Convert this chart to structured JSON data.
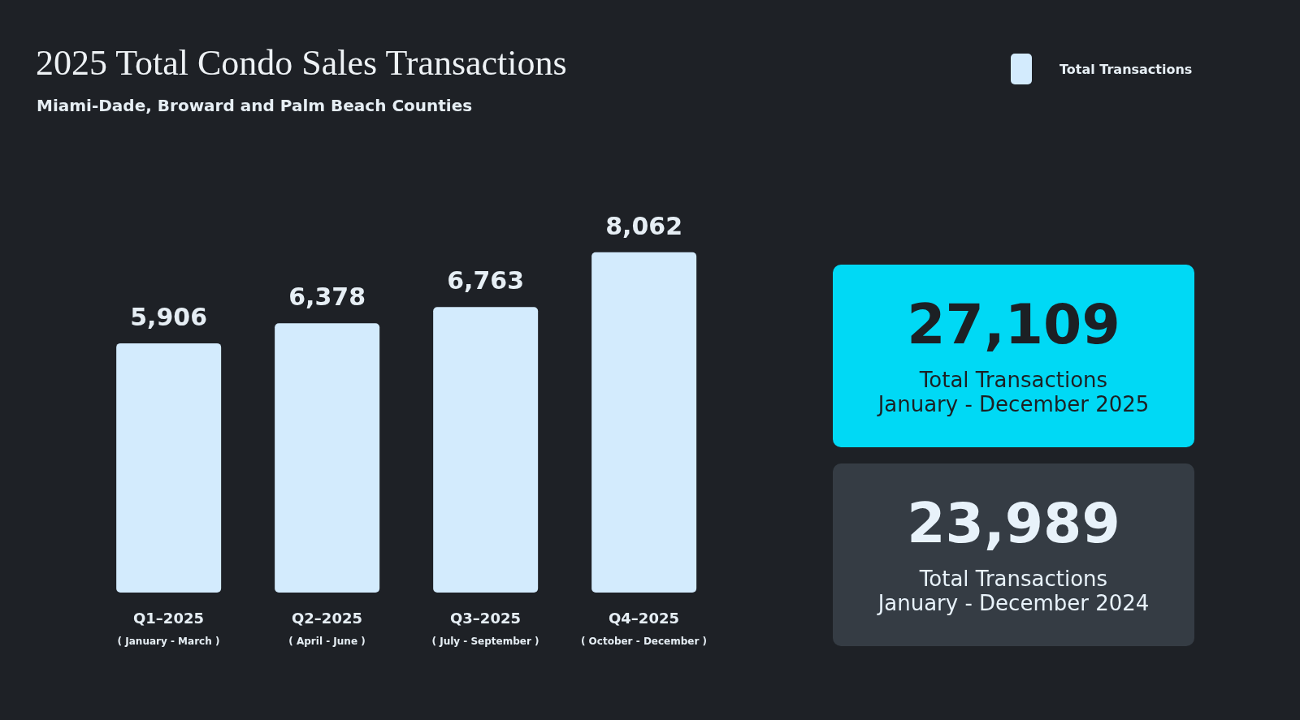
{
  "chart_data": [
    {
      "type": "bar",
      "title": "2025 Total Condo Sales Transactions",
      "subtitle": "Miami-Dade, Broward and Palm Beach Counties",
      "categories": [
        "Q1–2025\n( January - March )",
        "Q2–2025\n( April - June )",
        "Q3–2025\n( July - September )",
        "Q4–2025\n( October - December )"
      ],
      "series": [
        {
          "name": "Total Transactions",
          "color": "#d3ebfd",
          "values": [
            5906,
            6378,
            6763,
            8062
          ],
          "value_labels": [
            "5,906",
            "6,378",
            "6,763",
            "8,062"
          ]
        }
      ],
      "legend": "top right",
      "grid": false
    },
    {
      "type": "other",
      "annotations": [
        "27,109",
        "Total Transactions\nJanuary - December 2025",
        "23,989",
        "Total Transactions\nJanuary - December 2024"
      ],
      "colors": [
        "#00d9f5",
        "#353c44"
      ]
    }
  ]
}
